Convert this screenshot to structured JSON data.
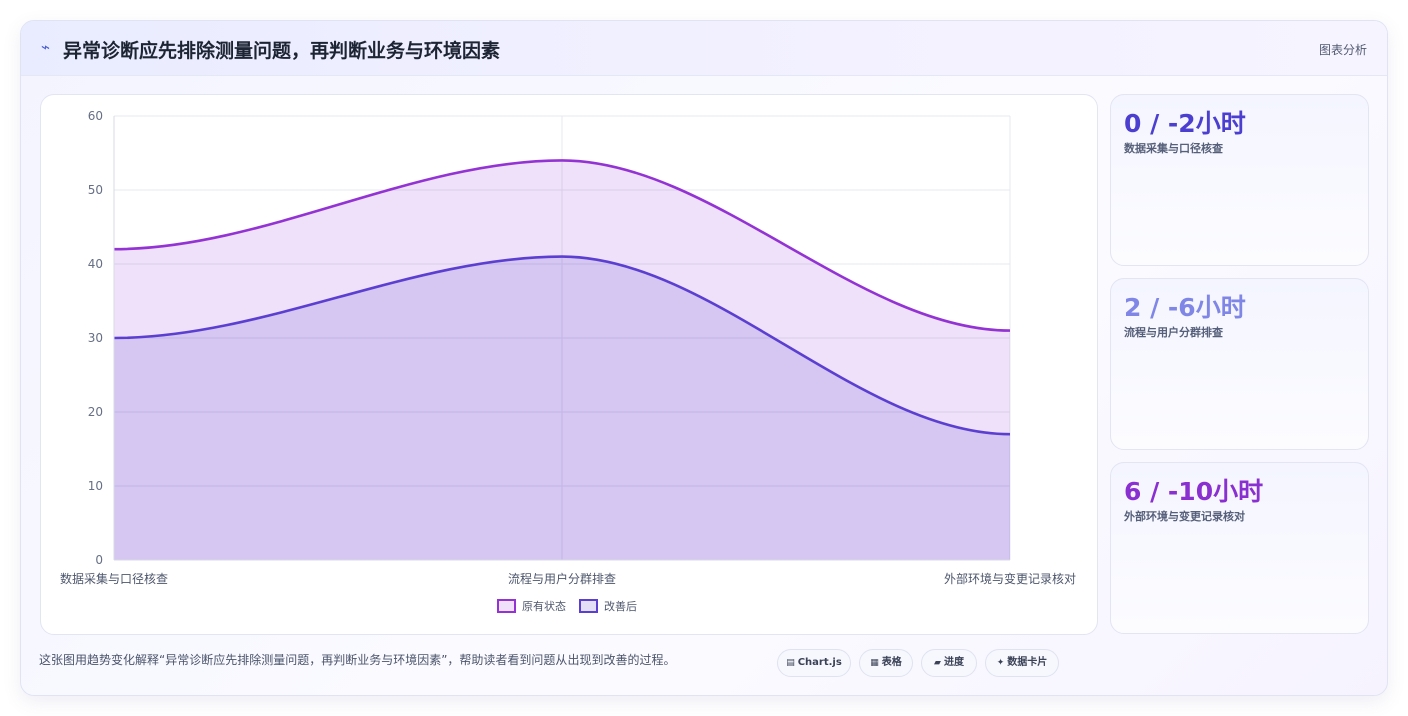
{
  "header": {
    "icon": "trend-icon",
    "title": "异常诊断应先排除测量问题，再判断业务与环境因素",
    "tag": "图表分析"
  },
  "chart_data": {
    "type": "area",
    "categories": [
      "数据采集与口径核查",
      "流程与用户分群排查",
      "外部环境与变更记录核对"
    ],
    "series": [
      {
        "name": "原有状态",
        "values": [
          42,
          54,
          31
        ],
        "color": "#9333d4"
      },
      {
        "name": "改善后",
        "values": [
          30,
          41,
          17
        ],
        "color": "#5b3fd1"
      }
    ],
    "ylim": [
      0,
      60
    ],
    "yticks": [
      0,
      10,
      20,
      30,
      40,
      50,
      60
    ],
    "grid": true,
    "legend": "bottom"
  },
  "kpis": [
    {
      "value": "0 / -2小时",
      "label": "数据采集与口径核查",
      "color": "#4c3fd0"
    },
    {
      "value": "2 / -6小时",
      "label": "流程与用户分群排查",
      "color": "#7f86e6"
    },
    {
      "value": "6 / -10小时",
      "label": "外部环境与变更记录核对",
      "color": "#8a2fd0"
    }
  ],
  "footer": {
    "text": "这张图用趋势变化解释“异常诊断应先排除测量问题，再判断业务与环境因素”，帮助读者看到问题从出现到改善的过程。",
    "chips": [
      {
        "icon": "chart-icon",
        "glyph": "▤",
        "label": "Chart.js"
      },
      {
        "icon": "table-icon",
        "glyph": "▦",
        "label": "表格"
      },
      {
        "icon": "progress-icon",
        "glyph": "▰",
        "label": "进度"
      },
      {
        "icon": "data-card-icon",
        "glyph": "✦",
        "label": "数据卡片"
      }
    ]
  }
}
